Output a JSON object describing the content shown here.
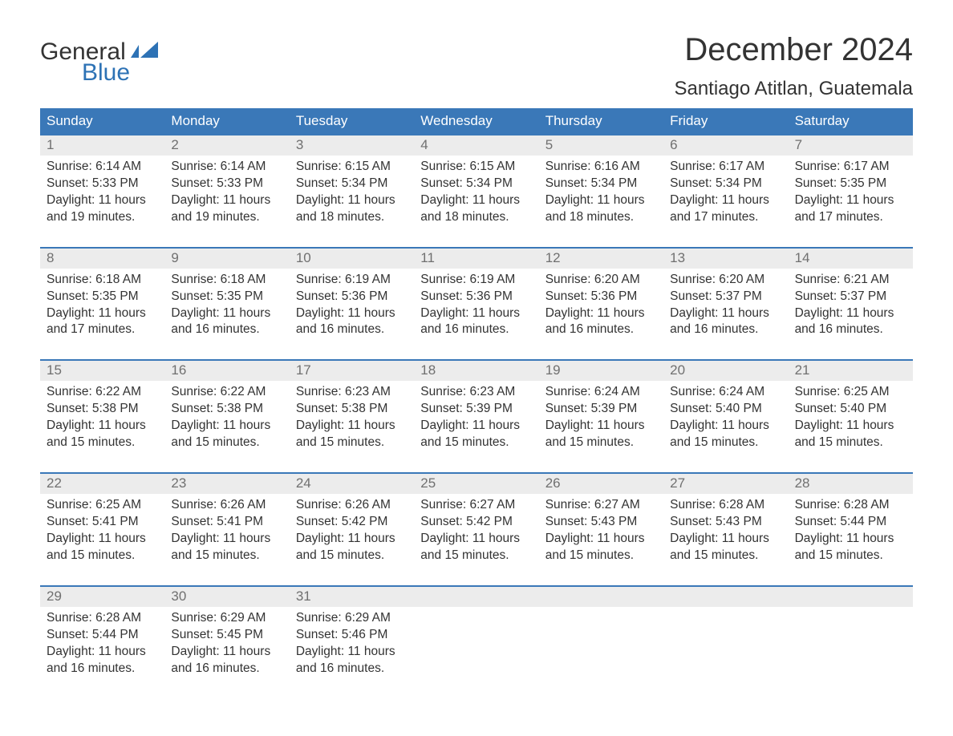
{
  "brand": {
    "text_top": "General",
    "text_bottom": "Blue",
    "color_dark": "#333333",
    "color_accent": "#2d72b5"
  },
  "header": {
    "month_title": "December 2024",
    "location": "Santiago Atitlan, Guatemala"
  },
  "style": {
    "header_bg": "#3a78b8",
    "header_text": "#ffffff",
    "daynum_bg": "#ececec",
    "daynum_text": "#707070",
    "body_text": "#333333",
    "border_color": "#3a78b8",
    "title_fontsize_pt": 30,
    "location_fontsize_pt": 18,
    "weekday_fontsize_pt": 13,
    "cell_fontsize_pt": 11.5
  },
  "weekdays": [
    "Sunday",
    "Monday",
    "Tuesday",
    "Wednesday",
    "Thursday",
    "Friday",
    "Saturday"
  ],
  "labels": {
    "sunrise": "Sunrise",
    "sunset": "Sunset",
    "daylight": "Daylight"
  },
  "days": [
    {
      "n": "1",
      "sunrise": "6:14 AM",
      "sunset": "5:33 PM",
      "daylight": "11 hours and 19 minutes."
    },
    {
      "n": "2",
      "sunrise": "6:14 AM",
      "sunset": "5:33 PM",
      "daylight": "11 hours and 19 minutes."
    },
    {
      "n": "3",
      "sunrise": "6:15 AM",
      "sunset": "5:34 PM",
      "daylight": "11 hours and 18 minutes."
    },
    {
      "n": "4",
      "sunrise": "6:15 AM",
      "sunset": "5:34 PM",
      "daylight": "11 hours and 18 minutes."
    },
    {
      "n": "5",
      "sunrise": "6:16 AM",
      "sunset": "5:34 PM",
      "daylight": "11 hours and 18 minutes."
    },
    {
      "n": "6",
      "sunrise": "6:17 AM",
      "sunset": "5:34 PM",
      "daylight": "11 hours and 17 minutes."
    },
    {
      "n": "7",
      "sunrise": "6:17 AM",
      "sunset": "5:35 PM",
      "daylight": "11 hours and 17 minutes."
    },
    {
      "n": "8",
      "sunrise": "6:18 AM",
      "sunset": "5:35 PM",
      "daylight": "11 hours and 17 minutes."
    },
    {
      "n": "9",
      "sunrise": "6:18 AM",
      "sunset": "5:35 PM",
      "daylight": "11 hours and 16 minutes."
    },
    {
      "n": "10",
      "sunrise": "6:19 AM",
      "sunset": "5:36 PM",
      "daylight": "11 hours and 16 minutes."
    },
    {
      "n": "11",
      "sunrise": "6:19 AM",
      "sunset": "5:36 PM",
      "daylight": "11 hours and 16 minutes."
    },
    {
      "n": "12",
      "sunrise": "6:20 AM",
      "sunset": "5:36 PM",
      "daylight": "11 hours and 16 minutes."
    },
    {
      "n": "13",
      "sunrise": "6:20 AM",
      "sunset": "5:37 PM",
      "daylight": "11 hours and 16 minutes."
    },
    {
      "n": "14",
      "sunrise": "6:21 AM",
      "sunset": "5:37 PM",
      "daylight": "11 hours and 16 minutes."
    },
    {
      "n": "15",
      "sunrise": "6:22 AM",
      "sunset": "5:38 PM",
      "daylight": "11 hours and 15 minutes."
    },
    {
      "n": "16",
      "sunrise": "6:22 AM",
      "sunset": "5:38 PM",
      "daylight": "11 hours and 15 minutes."
    },
    {
      "n": "17",
      "sunrise": "6:23 AM",
      "sunset": "5:38 PM",
      "daylight": "11 hours and 15 minutes."
    },
    {
      "n": "18",
      "sunrise": "6:23 AM",
      "sunset": "5:39 PM",
      "daylight": "11 hours and 15 minutes."
    },
    {
      "n": "19",
      "sunrise": "6:24 AM",
      "sunset": "5:39 PM",
      "daylight": "11 hours and 15 minutes."
    },
    {
      "n": "20",
      "sunrise": "6:24 AM",
      "sunset": "5:40 PM",
      "daylight": "11 hours and 15 minutes."
    },
    {
      "n": "21",
      "sunrise": "6:25 AM",
      "sunset": "5:40 PM",
      "daylight": "11 hours and 15 minutes."
    },
    {
      "n": "22",
      "sunrise": "6:25 AM",
      "sunset": "5:41 PM",
      "daylight": "11 hours and 15 minutes."
    },
    {
      "n": "23",
      "sunrise": "6:26 AM",
      "sunset": "5:41 PM",
      "daylight": "11 hours and 15 minutes."
    },
    {
      "n": "24",
      "sunrise": "6:26 AM",
      "sunset": "5:42 PM",
      "daylight": "11 hours and 15 minutes."
    },
    {
      "n": "25",
      "sunrise": "6:27 AM",
      "sunset": "5:42 PM",
      "daylight": "11 hours and 15 minutes."
    },
    {
      "n": "26",
      "sunrise": "6:27 AM",
      "sunset": "5:43 PM",
      "daylight": "11 hours and 15 minutes."
    },
    {
      "n": "27",
      "sunrise": "6:28 AM",
      "sunset": "5:43 PM",
      "daylight": "11 hours and 15 minutes."
    },
    {
      "n": "28",
      "sunrise": "6:28 AM",
      "sunset": "5:44 PM",
      "daylight": "11 hours and 15 minutes."
    },
    {
      "n": "29",
      "sunrise": "6:28 AM",
      "sunset": "5:44 PM",
      "daylight": "11 hours and 16 minutes."
    },
    {
      "n": "30",
      "sunrise": "6:29 AM",
      "sunset": "5:45 PM",
      "daylight": "11 hours and 16 minutes."
    },
    {
      "n": "31",
      "sunrise": "6:29 AM",
      "sunset": "5:46 PM",
      "daylight": "11 hours and 16 minutes."
    }
  ]
}
